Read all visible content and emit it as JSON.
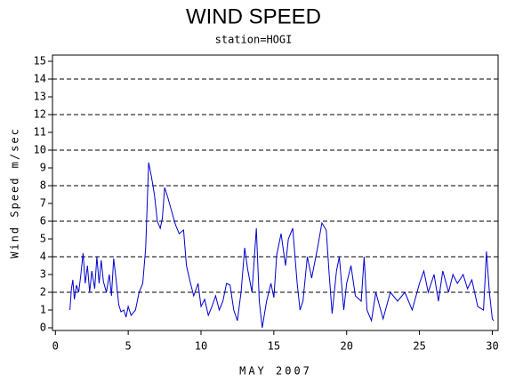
{
  "chart_data": {
    "type": "line",
    "title": "WIND SPEED",
    "subtitle": "station=HOGI",
    "x_label": "MAY 2007",
    "y_label": "Wind Speed m/sec",
    "xlim": [
      -0.2,
      30.4
    ],
    "xticks": [
      0,
      5,
      10,
      15,
      20,
      25,
      30
    ],
    "ylim": [
      0,
      15
    ],
    "yticks": [
      0,
      1,
      2,
      3,
      4,
      5,
      6,
      7,
      8,
      9,
      10,
      11,
      12,
      13,
      14,
      15
    ],
    "ygrid": [
      2,
      4,
      6,
      8,
      10,
      12,
      14
    ],
    "grid": true,
    "series": [
      {
        "name": "Wind Speed",
        "color": "#0000cc",
        "x": [
          1.0,
          1.1,
          1.2,
          1.3,
          1.45,
          1.6,
          1.75,
          1.9,
          2.05,
          2.2,
          2.35,
          2.5,
          2.7,
          2.85,
          3.0,
          3.15,
          3.3,
          3.5,
          3.7,
          3.85,
          4.0,
          4.2,
          4.35,
          4.5,
          4.7,
          4.85,
          5.0,
          5.2,
          5.5,
          5.75,
          6.0,
          6.2,
          6.4,
          6.6,
          6.8,
          7.0,
          7.2,
          7.35,
          7.5,
          7.7,
          8.0,
          8.25,
          8.5,
          8.8,
          9.0,
          9.25,
          9.5,
          9.8,
          10.0,
          10.25,
          10.5,
          10.75,
          11.0,
          11.25,
          11.5,
          11.75,
          12.0,
          12.25,
          12.5,
          12.75,
          13.0,
          13.2,
          13.5,
          13.8,
          14.0,
          14.2,
          14.5,
          14.8,
          15.0,
          15.2,
          15.5,
          15.8,
          16.0,
          16.3,
          16.6,
          16.8,
          17.0,
          17.3,
          17.6,
          18.0,
          18.3,
          18.6,
          18.8,
          19.0,
          19.3,
          19.5,
          19.8,
          20.0,
          20.3,
          20.6,
          21.0,
          21.2,
          21.4,
          21.7,
          22.0,
          22.5,
          23.0,
          23.5,
          24.0,
          24.5,
          25.0,
          25.3,
          25.6,
          26.0,
          26.3,
          26.6,
          27.0,
          27.3,
          27.6,
          28.0,
          28.3,
          28.6,
          29.0,
          29.4,
          29.6,
          29.8,
          30.0,
          30.1
        ],
        "values": [
          1.0,
          2.2,
          2.7,
          1.6,
          2.4,
          2.0,
          3.0,
          4.2,
          2.5,
          3.5,
          2.0,
          3.2,
          2.2,
          4.0,
          2.5,
          3.8,
          2.6,
          2.0,
          3.0,
          1.8,
          3.9,
          2.5,
          1.3,
          0.9,
          1.0,
          0.6,
          1.2,
          0.7,
          1.0,
          2.0,
          2.5,
          4.5,
          9.3,
          8.5,
          7.5,
          6.0,
          5.6,
          6.2,
          7.9,
          7.4,
          6.5,
          5.8,
          5.3,
          5.5,
          3.5,
          2.6,
          1.8,
          2.5,
          1.2,
          1.6,
          0.7,
          1.2,
          1.8,
          1.0,
          1.5,
          2.5,
          2.4,
          1.0,
          0.4,
          2.0,
          4.5,
          3.3,
          2.0,
          5.6,
          1.5,
          0.0,
          1.5,
          2.5,
          1.7,
          4.1,
          5.3,
          3.5,
          5.0,
          5.6,
          2.5,
          1.0,
          1.5,
          4.0,
          2.8,
          4.5,
          5.9,
          5.5,
          3.0,
          0.8,
          3.2,
          4.0,
          1.0,
          2.5,
          3.5,
          1.8,
          1.5,
          4.0,
          1.0,
          0.4,
          2.0,
          0.5,
          2.0,
          1.5,
          2.0,
          1.0,
          2.5,
          3.2,
          2.0,
          3.0,
          1.5,
          3.2,
          2.0,
          3.0,
          2.5,
          3.0,
          2.2,
          2.7,
          1.2,
          1.0,
          4.3,
          2.0,
          0.5,
          0.4
        ]
      }
    ]
  }
}
